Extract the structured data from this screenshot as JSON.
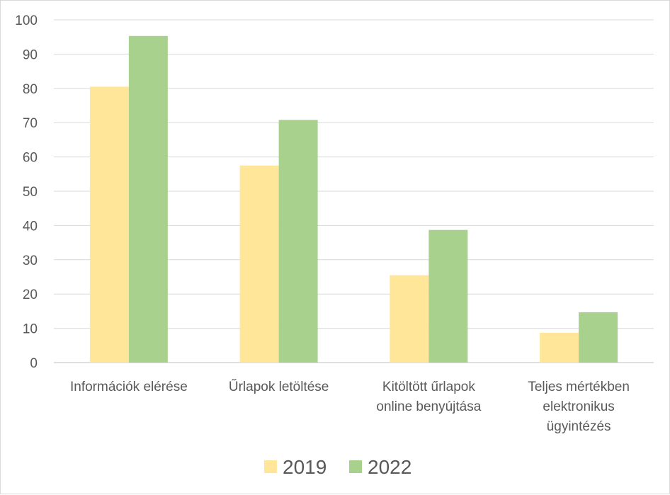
{
  "chart_data": {
    "type": "bar",
    "categories": [
      [
        "Információk elérése"
      ],
      [
        "Űrlapok letöltése"
      ],
      [
        "Kitöltött űrlapok",
        "online benyújtása"
      ],
      [
        "Teljes mértékben",
        "elektronikus",
        "ügyintézés"
      ]
    ],
    "series": [
      {
        "name": "2019",
        "color": "#ffe699",
        "values": [
          80.5,
          57.5,
          25.5,
          8.7
        ]
      },
      {
        "name": "2022",
        "color": "#a9d18e",
        "values": [
          95.3,
          70.8,
          38.7,
          14.7
        ]
      }
    ],
    "ylim": [
      0,
      100
    ],
    "yticks": [
      0,
      10,
      20,
      30,
      40,
      50,
      60,
      70,
      80,
      90,
      100
    ],
    "grid": true,
    "legend": "bottom",
    "xlabel": "",
    "ylabel": "",
    "title": ""
  }
}
